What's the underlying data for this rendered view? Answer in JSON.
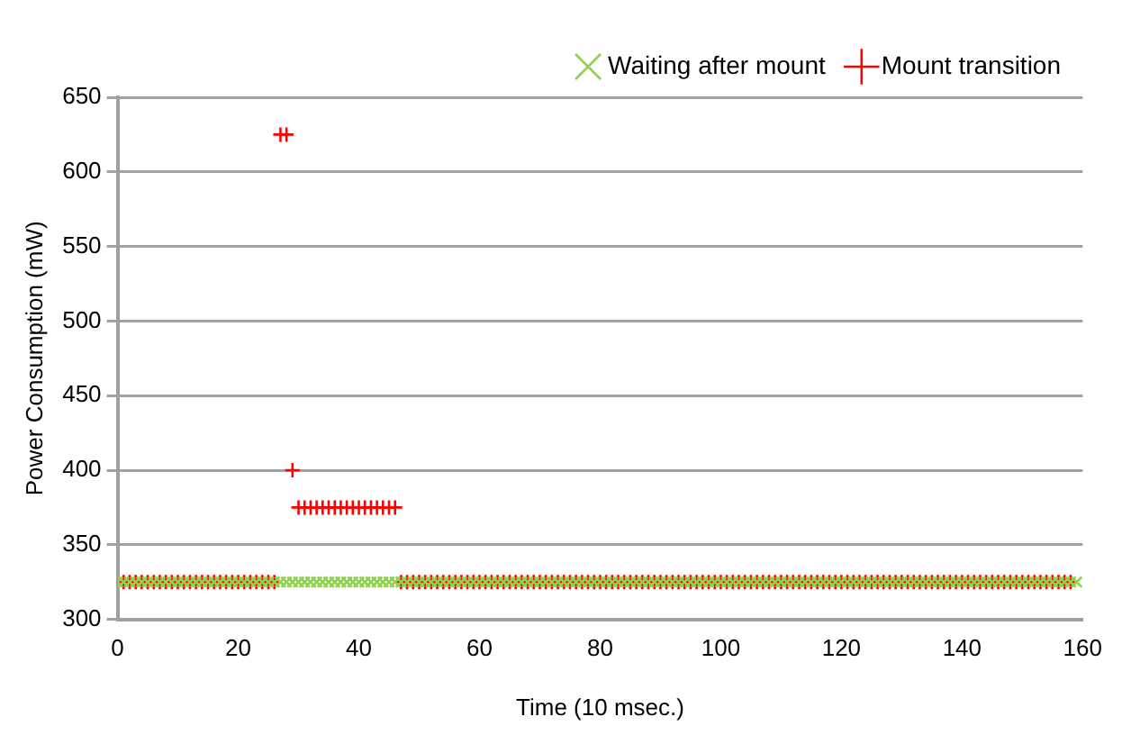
{
  "chart_data": {
    "type": "scatter",
    "xlabel": "Time (10 msec.)",
    "ylabel": "Power Consumption (mW)",
    "x": [
      0,
      1,
      2,
      3,
      4,
      5,
      6,
      7,
      8,
      9,
      10,
      11,
      12,
      13,
      14,
      15,
      16,
      17,
      18,
      19,
      20,
      21,
      22,
      23,
      24,
      25,
      26,
      27,
      28,
      29,
      30,
      31,
      32,
      33,
      34,
      35,
      36,
      37,
      38,
      39,
      40,
      41,
      42,
      43,
      44,
      45,
      46,
      47,
      48,
      49,
      50,
      51,
      52,
      53,
      54,
      55,
      56,
      57,
      58,
      59,
      60,
      61,
      62,
      63,
      64,
      65,
      66,
      67,
      68,
      69,
      70,
      71,
      72,
      73,
      74,
      75,
      76,
      77,
      78,
      79,
      80,
      81,
      82,
      83,
      84,
      85,
      86,
      87,
      88,
      89,
      90,
      91,
      92,
      93,
      94,
      95,
      96,
      97,
      98,
      99,
      100,
      101,
      102,
      103,
      104,
      105,
      106,
      107,
      108,
      109,
      110,
      111,
      112,
      113,
      114,
      115,
      116,
      117,
      118,
      119,
      120,
      121,
      122,
      123,
      124,
      125,
      126,
      127,
      128,
      129,
      130,
      131,
      132,
      133,
      134,
      135,
      136,
      137,
      138,
      139,
      140,
      141,
      142,
      143,
      144,
      145,
      146,
      147,
      148,
      149,
      150,
      151,
      152,
      153,
      154,
      155,
      156,
      157,
      158,
      159
    ],
    "series": [
      {
        "name": "Waiting after mount",
        "color": "#92d050",
        "marker": "cross",
        "values": [
          325,
          325,
          325,
          325,
          325,
          325,
          325,
          325,
          325,
          325,
          325,
          325,
          325,
          325,
          325,
          325,
          325,
          325,
          325,
          325,
          325,
          325,
          325,
          325,
          325,
          325,
          325,
          325,
          325,
          325,
          325,
          325,
          325,
          325,
          325,
          325,
          325,
          325,
          325,
          325,
          325,
          325,
          325,
          325,
          325,
          325,
          325,
          325,
          325,
          325,
          325,
          325,
          325,
          325,
          325,
          325,
          325,
          325,
          325,
          325,
          325,
          325,
          325,
          325,
          325,
          325,
          325,
          325,
          325,
          325,
          325,
          325,
          325,
          325,
          325,
          325,
          325,
          325,
          325,
          325,
          325,
          325,
          325,
          325,
          325,
          325,
          325,
          325,
          325,
          325,
          325,
          325,
          325,
          325,
          325,
          325,
          325,
          325,
          325,
          325,
          325,
          325,
          325,
          325,
          325,
          325,
          325,
          325,
          325,
          325,
          325,
          325,
          325,
          325,
          325,
          325,
          325,
          325,
          325,
          325,
          325,
          325,
          325,
          325,
          325,
          325,
          325,
          325,
          325,
          325,
          325,
          325,
          325,
          325,
          325,
          325,
          325,
          325,
          325,
          325,
          325,
          325,
          325,
          325,
          325,
          325,
          325,
          325,
          325,
          325,
          325,
          325,
          325,
          325,
          325,
          325,
          325,
          325,
          325,
          325
        ]
      },
      {
        "name": "Mount transition",
        "color": "#ff0000",
        "marker": "plus",
        "values": [
          null,
          325,
          325,
          325,
          325,
          325,
          325,
          325,
          325,
          325,
          325,
          325,
          325,
          325,
          325,
          325,
          325,
          325,
          325,
          325,
          325,
          325,
          325,
          325,
          325,
          325,
          325,
          625,
          625,
          400,
          375,
          375,
          375,
          375,
          375,
          375,
          375,
          375,
          375,
          375,
          375,
          375,
          375,
          375,
          375,
          375,
          375,
          325,
          325,
          325,
          325,
          325,
          325,
          325,
          325,
          325,
          325,
          325,
          325,
          325,
          325,
          325,
          325,
          325,
          325,
          325,
          325,
          325,
          325,
          325,
          325,
          325,
          325,
          325,
          325,
          325,
          325,
          325,
          325,
          325,
          325,
          325,
          325,
          325,
          325,
          325,
          325,
          325,
          325,
          325,
          325,
          325,
          325,
          325,
          325,
          325,
          325,
          325,
          325,
          325,
          325,
          325,
          325,
          325,
          325,
          325,
          325,
          325,
          325,
          325,
          325,
          325,
          325,
          325,
          325,
          325,
          325,
          325,
          325,
          325,
          325,
          325,
          325,
          325,
          325,
          325,
          325,
          325,
          325,
          325,
          325,
          325,
          325,
          325,
          325,
          325,
          325,
          325,
          325,
          325,
          325,
          325,
          325,
          325,
          325,
          325,
          325,
          325,
          325,
          325,
          325,
          325,
          325,
          325,
          325,
          325,
          325,
          325,
          325,
          null
        ]
      }
    ],
    "xlim": [
      0,
      160
    ],
    "xticks": [
      0,
      20,
      40,
      60,
      80,
      100,
      120,
      140,
      160
    ],
    "ylim": [
      300,
      650
    ],
    "yticks": [
      300,
      350,
      400,
      450,
      500,
      550,
      600,
      650
    ],
    "grid": "y",
    "legend": "top right"
  }
}
